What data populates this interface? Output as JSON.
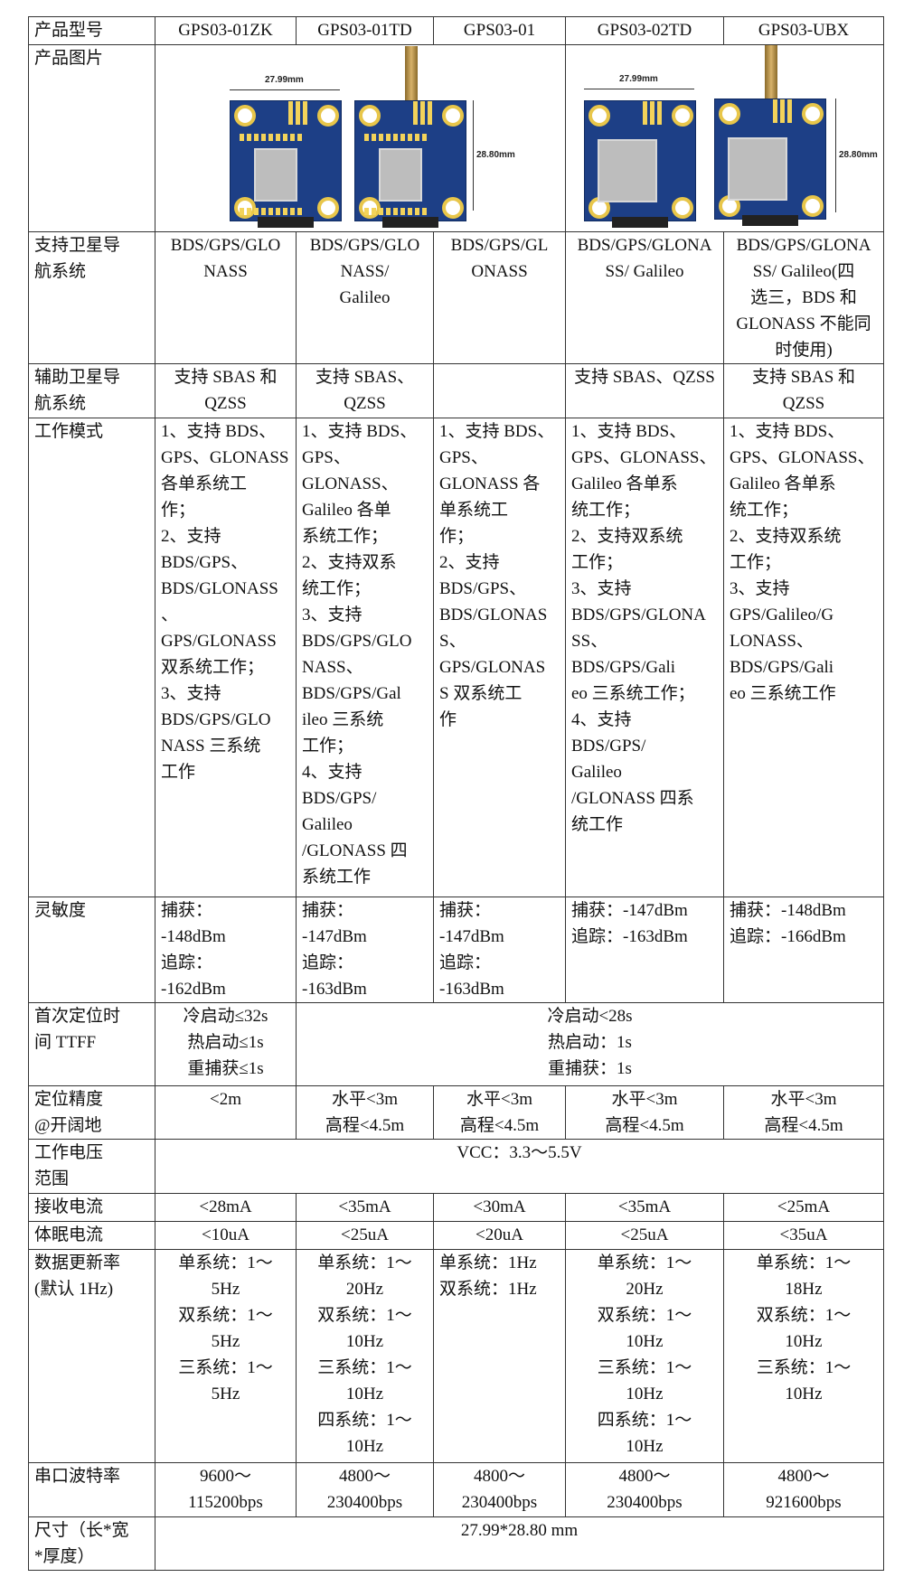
{
  "header": [
    "产品型号",
    "GPS03-01ZK",
    "GPS03-01TD",
    "GPS03-01",
    "GPS03-02TD",
    "GPS03-UBX"
  ],
  "image_row": {
    "label": "产品图片",
    "width_label": "27.99mm",
    "height_label": "28.80mm"
  },
  "rows": [
    {
      "label": [
        "支持卫星导",
        "航系统"
      ],
      "cells": [
        [
          "BDS/GPS/GLO",
          "NASS"
        ],
        [
          "BDS/GPS/GLO",
          "NASS/",
          "Galileo"
        ],
        [
          "BDS/GPS/GL",
          "ONASS"
        ],
        [
          "BDS/GPS/GLONA",
          "SS/ Galileo"
        ],
        [
          "BDS/GPS/GLONA",
          "SS/ Galileo(四",
          "选三，BDS 和",
          "GLONASS 不能同",
          "时使用)"
        ]
      ]
    },
    {
      "label": [
        "辅助卫星导",
        "航系统"
      ],
      "cells": [
        [
          "支持 SBAS 和",
          "QZSS"
        ],
        [
          "支持 SBAS、",
          "QZSS"
        ],
        [],
        [
          "支持 SBAS、QZSS"
        ],
        [
          "支持 SBAS 和",
          "QZSS"
        ]
      ]
    },
    {
      "label": [
        "工作模式"
      ],
      "cells": [
        [
          "1、支持 BDS、",
          "GPS、GLONASS",
          "各单系统工",
          "作；",
          "2、支持",
          "BDS/GPS、",
          "BDS/GLONASS",
          "、",
          "GPS/GLONASS",
          "双系统工作；",
          "3、支持",
          "BDS/GPS/GLO",
          "NASS 三系统",
          "工作"
        ],
        [
          "1、支持 BDS、",
          "GPS、",
          "GLONASS、",
          "Galileo 各单",
          "系统工作；",
          "2、支持双系",
          "统工作；",
          "3、支持",
          "BDS/GPS/GLO",
          "NASS、",
          "BDS/GPS/Gal",
          "ileo 三系统",
          "工作；",
          "4、支持",
          "BDS/GPS/",
          "Galileo",
          "/GLONASS 四",
          "系统工作"
        ],
        [
          "1、支持 BDS、",
          "GPS、",
          "GLONASS 各",
          "单系统工",
          "作；",
          "2、支持",
          "BDS/GPS、",
          "BDS/GLONAS",
          "S、",
          "GPS/GLONAS",
          "S 双系统工",
          "作"
        ],
        [
          "1、支持 BDS、",
          "GPS、GLONASS、",
          "Galileo 各单系",
          "统工作；",
          "2、支持双系统",
          "工作；",
          "3、支持",
          "BDS/GPS/GLONA",
          "SS、",
          "BDS/GPS/Gali",
          "eo 三系统工作；",
          "4、支持",
          "BDS/GPS/",
          "Galileo",
          "/GLONASS 四系",
          "统工作"
        ],
        [
          "1、支持 BDS、",
          "GPS、GLONASS、",
          "Galileo 各单系",
          "统工作；",
          "2、支持双系统",
          "工作；",
          "3、支持",
          "GPS/Galileo/G",
          "LONASS、",
          "BDS/GPS/Gali",
          "eo 三系统工作"
        ]
      ]
    },
    {
      "label": [
        "灵敏度"
      ],
      "cells": [
        [
          "捕获：",
          "-148dBm",
          "追踪：",
          "-162dBm"
        ],
        [
          "捕获：",
          "-147dBm",
          "追踪：",
          "-163dBm"
        ],
        [
          "捕获：",
          "-147dBm",
          "追踪：",
          "-163dBm"
        ],
        [
          "捕获：-147dBm",
          "追踪：-163dBm"
        ],
        [
          "捕获：-148dBm",
          "追踪：-166dBm"
        ]
      ]
    },
    {
      "label": [
        "首次定位时",
        "间 TTFF"
      ],
      "cells": [
        [
          "冷启动≤32s",
          "热启动≤1s",
          "重捕获≤1s"
        ],
        [
          "冷启动<28s",
          "热启动：1s",
          "重捕获：1s"
        ]
      ]
    },
    {
      "label": [
        "定位精度",
        "@开阔地"
      ],
      "cells": [
        [
          "<2m"
        ],
        [
          "水平<3m",
          "高程<4.5m"
        ],
        [
          "水平<3m",
          "高程<4.5m"
        ],
        [
          "水平<3m",
          "高程<4.5m"
        ],
        [
          "水平<3m",
          "高程<4.5m"
        ]
      ]
    },
    {
      "label": [
        "工作电压",
        "范围"
      ],
      "cells": [
        [
          "VCC：3.3～5.5V"
        ]
      ]
    },
    {
      "label": [
        "接收电流"
      ],
      "cells": [
        [
          "<28mA"
        ],
        [
          "<35mA"
        ],
        [
          "<30mA"
        ],
        [
          "<35mA"
        ],
        [
          "<25mA"
        ]
      ]
    },
    {
      "label": [
        "体眠电流"
      ],
      "cells": [
        [
          "<10uA"
        ],
        [
          "<25uA"
        ],
        [
          "<20uA"
        ],
        [
          "<25uA"
        ],
        [
          "<35uA"
        ]
      ]
    },
    {
      "label": [
        "数据更新率",
        "(默认 1Hz)"
      ],
      "cells": [
        [
          "单系统：1～",
          "5Hz",
          "双系统：1～",
          "5Hz",
          "三系统：1～",
          "5Hz"
        ],
        [
          "单系统：1～",
          "20Hz",
          "双系统：1～",
          "10Hz",
          "三系统：1～",
          "10Hz",
          "四系统：1～",
          "10Hz"
        ],
        [
          "单系统：1Hz",
          "双系统：1Hz"
        ],
        [
          "单系统：1～",
          "20Hz",
          "双系统：1～",
          "10Hz",
          "三系统：1～",
          "10Hz",
          "四系统：1～",
          "10Hz"
        ],
        [
          "单系统：1～",
          "18Hz",
          "双系统：1～",
          "10Hz",
          "三系统：1～",
          "10Hz"
        ]
      ]
    },
    {
      "label": [
        "串口波特率"
      ],
      "cells": [
        [
          "9600～",
          "115200bps"
        ],
        [
          "4800～",
          "230400bps"
        ],
        [
          "4800～",
          "230400bps"
        ],
        [
          "4800～",
          "230400bps"
        ],
        [
          "4800～",
          "921600bps"
        ]
      ]
    },
    {
      "label": [
        "尺寸（长*宽",
        "*厚度）"
      ],
      "cells": [
        [
          "27.99*28.80 mm"
        ]
      ]
    }
  ]
}
